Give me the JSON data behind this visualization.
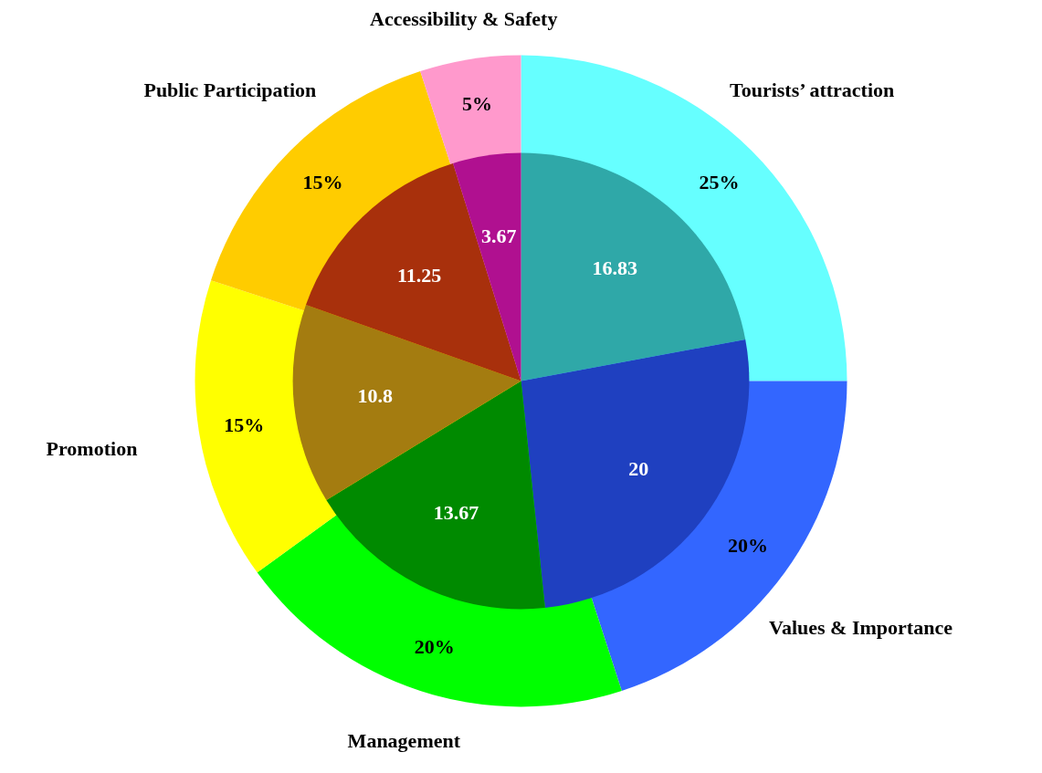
{
  "chart_data": {
    "type": "pie",
    "categories": [
      "Tourists’ attraction",
      "Values & Importance",
      "Management",
      "Promotion",
      "Public Participation",
      "Accessibility & Safety"
    ],
    "series": [
      {
        "values": [
          25,
          20,
          20,
          15,
          15,
          5
        ],
        "colors": [
          "#66ffff",
          "#3366ff",
          "#00ff00",
          "#ffff00",
          "#ffcc00",
          "#ff99cc"
        ],
        "value_labels": [
          "25%",
          "20%",
          "20%",
          "15%",
          "15%",
          "5%"
        ]
      },
      {
        "values": [
          16.83,
          20,
          13.67,
          10.8,
          11.25,
          3.67
        ],
        "colors": [
          "#2fa8a8",
          "#1f40c0",
          "#008a00",
          "#a47c10",
          "#a8300c",
          "#b01090"
        ],
        "value_labels": [
          "16.83",
          "20",
          "13.67",
          "10.8",
          "11.25",
          "3.67"
        ]
      }
    ]
  }
}
